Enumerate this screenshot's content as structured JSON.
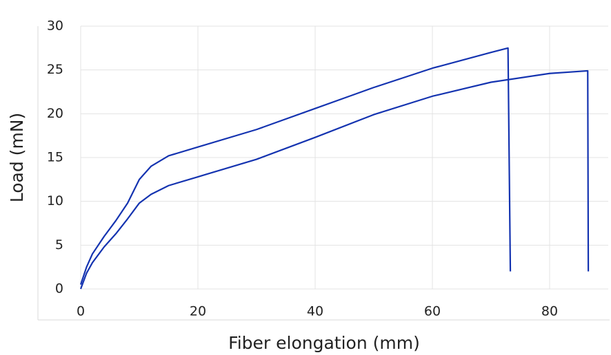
{
  "chart_data": {
    "type": "line",
    "xlabel": "Fiber elongation (mm)",
    "ylabel": "Load (mN)",
    "xlim": [
      0,
      90
    ],
    "xticks": [
      0,
      20,
      40,
      60,
      80
    ],
    "ylim": [
      0,
      30
    ],
    "yticks": [
      0,
      5,
      10,
      15,
      20,
      25,
      30
    ],
    "grid": true,
    "series": [
      {
        "color": "#1433b0",
        "x": [
          0,
          1,
          2,
          4,
          6,
          8,
          10,
          12,
          15,
          20,
          30,
          40,
          50,
          60,
          70,
          72.9,
          73.3
        ],
        "values": [
          0.5,
          2.5,
          4,
          6,
          7.8,
          9.8,
          12.5,
          14,
          15.2,
          16.2,
          18.2,
          20.6,
          23,
          25.2,
          27,
          27.5,
          2
        ]
      },
      {
        "color": "#1433b0",
        "x": [
          0,
          1,
          2,
          4,
          6,
          8,
          10,
          12,
          15,
          20,
          30,
          40,
          50,
          60,
          70,
          80,
          86.5,
          86.6
        ],
        "values": [
          0,
          1.8,
          3,
          4.8,
          6.3,
          8,
          9.8,
          10.8,
          11.8,
          12.8,
          14.8,
          17.3,
          19.9,
          22,
          23.6,
          24.6,
          24.9,
          2
        ]
      }
    ]
  }
}
